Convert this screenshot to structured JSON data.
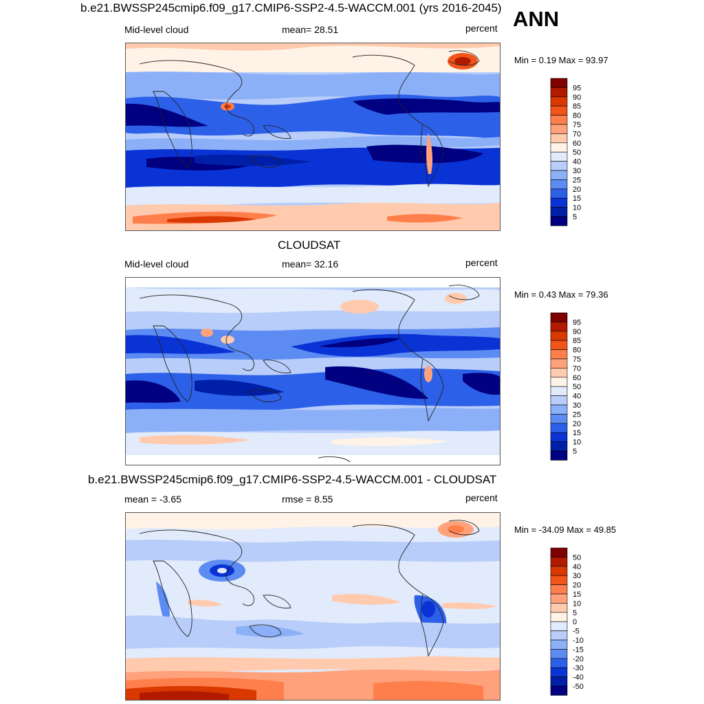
{
  "ann_label": "ANN",
  "panels": [
    {
      "title": "b.e21.BWSSP245cmip6.f09_g17.CMIP6-SSP2-4.5-WACCM.001 (yrs 2016-2045)",
      "left_label": "Mid-level cloud",
      "center_label": "mean=  28.51",
      "right_label": "percent",
      "minmax": "Min =   0.19 Max =  93.97"
    },
    {
      "title": "CLOUDSAT",
      "left_label": "Mid-level cloud",
      "center_label": "mean=  32.16",
      "right_label": "percent",
      "minmax": "Min =   0.43 Max =  79.36"
    },
    {
      "title": "b.e21.BWSSP245cmip6.f09_g17.CMIP6-SSP2-4.5-WACCM.001 - CLOUDSAT",
      "left_label": "mean =  -3.65",
      "center_label": "rmse =   8.55",
      "right_label": "percent",
      "minmax": "Min = -34.09 Max =  49.85"
    }
  ],
  "colorbars": {
    "absolute": {
      "labels": [
        "95",
        "90",
        "85",
        "80",
        "75",
        "70",
        "60",
        "50",
        "40",
        "30",
        "25",
        "20",
        "15",
        "10",
        "5"
      ],
      "colors": [
        "#7f0000",
        "#b21a00",
        "#d93800",
        "#f25519",
        "#ff7f4c",
        "#ffa27c",
        "#ffcaad",
        "#fff3e8",
        "#e1ebfb",
        "#b8cdfa",
        "#8cb0f8",
        "#5c8bf2",
        "#2d60e8",
        "#0a33d6",
        "#001fa8",
        "#000080"
      ]
    },
    "difference": {
      "labels": [
        "50",
        "40",
        "30",
        "20",
        "15",
        "10",
        "5",
        "0",
        "-5",
        "-10",
        "-15",
        "-20",
        "-30",
        "-40",
        "-50"
      ],
      "colors": [
        "#7f0000",
        "#b21a00",
        "#d93800",
        "#f25519",
        "#ff7f4c",
        "#ffa27c",
        "#ffcaad",
        "#fff3e8",
        "#e1ebfb",
        "#b8cdfa",
        "#8cb0f8",
        "#5c8bf2",
        "#2d60e8",
        "#0a33d6",
        "#001fa8",
        "#000080"
      ]
    }
  }
}
